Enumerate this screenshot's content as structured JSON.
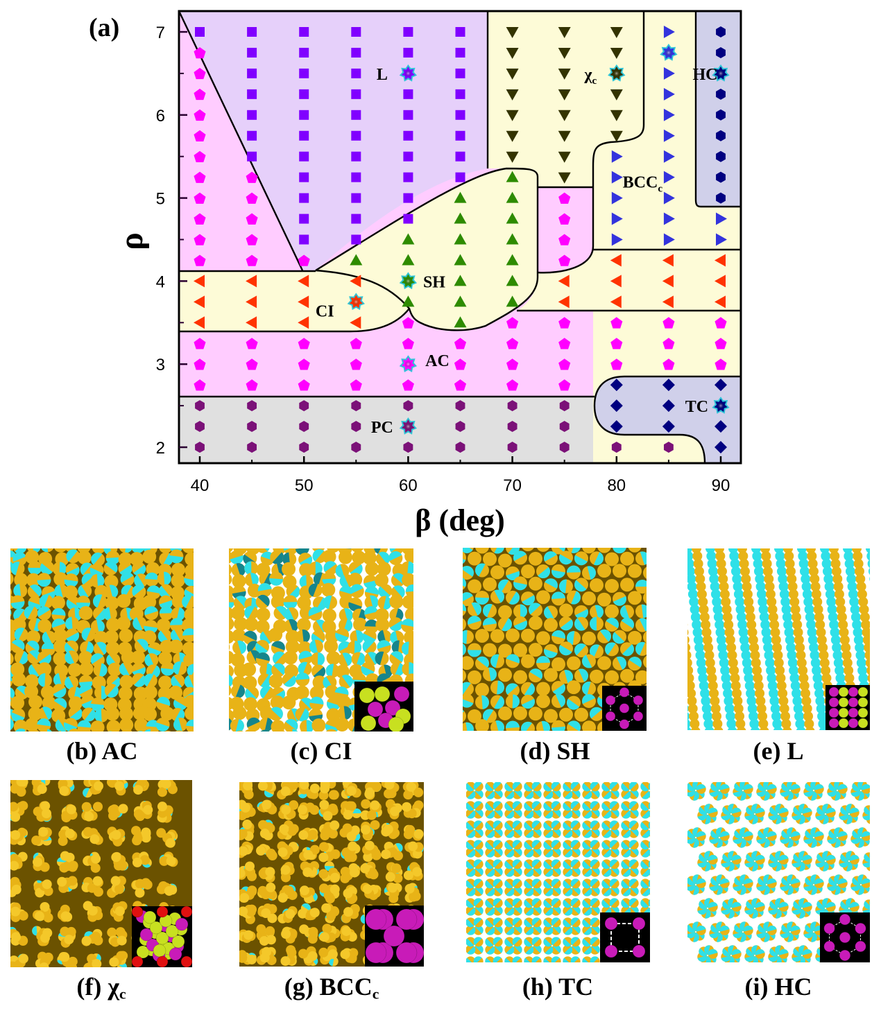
{
  "figure": {
    "panel_a_label": "(a)",
    "panels": [
      {
        "id": "b",
        "label": "(b) AC",
        "phase": "AC",
        "inset": "none"
      },
      {
        "id": "c",
        "label": "(c) CI",
        "phase": "CI",
        "inset": "CI unit cell (magenta and yellow-green spheres)"
      },
      {
        "id": "d",
        "label": "(d) SH",
        "phase": "SH",
        "inset": "hexagon with center sphere"
      },
      {
        "id": "e",
        "label": "(e) L",
        "phase": "L",
        "inset": "lamellar bicolor spheres"
      },
      {
        "id": "f",
        "label": "(f) χ",
        "sub": "c",
        "phase": "χc",
        "inset": "chi-phase unit cell"
      },
      {
        "id": "g",
        "label": "(g) BCC",
        "sub": "c",
        "phase": "BCCc",
        "inset": "BCC unit cell"
      },
      {
        "id": "h",
        "label": "(h) TC",
        "phase": "TC",
        "inset": "square of four spheres"
      },
      {
        "id": "i",
        "label": "(i) HC",
        "phase": "HC",
        "inset": "hexagon with center sphere"
      }
    ]
  },
  "chart_data": {
    "type": "scatter",
    "title": "",
    "xlabel": "β (deg)",
    "ylabel": "ρ",
    "xlim": [
      38,
      92
    ],
    "ylim": [
      1.8,
      7.25
    ],
    "xticks": [
      40,
      50,
      60,
      70,
      80,
      90
    ],
    "yticks": [
      2,
      3,
      4,
      5,
      6,
      7
    ],
    "x_minor_ticks": [
      45,
      55,
      65,
      75,
      85
    ],
    "y_minor_ticks": [
      2.5,
      3.5,
      4.5,
      5.5,
      6.5
    ],
    "grid": false,
    "legend": "none (phase labels annotated in-plot)",
    "x_values": [
      40,
      45,
      50,
      55,
      60,
      65,
      70,
      75,
      80,
      85,
      90
    ],
    "y_values": [
      2.0,
      2.25,
      2.5,
      2.75,
      3.0,
      3.25,
      3.5,
      3.75,
      4.0,
      4.25,
      4.5,
      4.75,
      5.0,
      5.25,
      5.5,
      5.75,
      6.0,
      6.25,
      6.5,
      6.75,
      7.0
    ],
    "phases": [
      {
        "name": "PC",
        "marker": "hexagon",
        "color": "#7b1178",
        "region_color": "#e0e0e0"
      },
      {
        "name": "AC",
        "marker": "pentagon",
        "color": "#ff00ff",
        "region_color": "#ffccff"
      },
      {
        "name": "CI",
        "marker": "triangle-left",
        "color": "#ff3300",
        "region_color": "#fdfbd7"
      },
      {
        "name": "SH",
        "marker": "triangle-up",
        "color": "#2e8b00",
        "region_color": "#fdfbd7"
      },
      {
        "name": "L",
        "marker": "square",
        "color": "#8000ff",
        "region_color": "#e6d0fa"
      },
      {
        "name": "χc",
        "marker": "triangle-down",
        "color": "#333300",
        "region_color": "#fdfbd7"
      },
      {
        "name": "BCCc",
        "marker": "triangle-right",
        "color": "#3333dd",
        "region_color": "#fdfbd7"
      },
      {
        "name": "HC",
        "marker": "hexagon",
        "color": "#000080",
        "region_color": "#d0d0ea"
      },
      {
        "name": "TC",
        "marker": "diamond",
        "color": "#000080",
        "region_color": "#d0d0ea"
      }
    ],
    "columns": [
      {
        "beta": 40,
        "points": [
          [
            "PC",
            2.0
          ],
          [
            "PC",
            2.25
          ],
          [
            "PC",
            2.5
          ],
          [
            "AC",
            2.75
          ],
          [
            "AC",
            3.0
          ],
          [
            "AC",
            3.25
          ],
          [
            "CI",
            3.5
          ],
          [
            "CI",
            3.75
          ],
          [
            "CI",
            4.0
          ],
          [
            "AC",
            4.25
          ],
          [
            "AC",
            4.5
          ],
          [
            "AC",
            4.75
          ],
          [
            "AC",
            5.0
          ],
          [
            "AC",
            5.25
          ],
          [
            "AC",
            5.5
          ],
          [
            "AC",
            5.75
          ],
          [
            "AC",
            6.0
          ],
          [
            "AC",
            6.25
          ],
          [
            "AC",
            6.5
          ],
          [
            "AC",
            6.75
          ],
          [
            "L",
            7.0
          ]
        ]
      },
      {
        "beta": 45,
        "points": [
          [
            "PC",
            2.0
          ],
          [
            "PC",
            2.25
          ],
          [
            "PC",
            2.5
          ],
          [
            "AC",
            2.75
          ],
          [
            "AC",
            3.0
          ],
          [
            "AC",
            3.25
          ],
          [
            "CI",
            3.5
          ],
          [
            "CI",
            3.75
          ],
          [
            "CI",
            4.0
          ],
          [
            "AC",
            4.25
          ],
          [
            "AC",
            4.5
          ],
          [
            "AC",
            4.75
          ],
          [
            "AC",
            5.0
          ],
          [
            "AC",
            5.25
          ],
          [
            "L",
            5.5
          ],
          [
            "L",
            5.75
          ],
          [
            "L",
            6.0
          ],
          [
            "L",
            6.25
          ],
          [
            "L",
            6.5
          ],
          [
            "L",
            6.75
          ],
          [
            "L",
            7.0
          ]
        ]
      },
      {
        "beta": 50,
        "points": [
          [
            "PC",
            2.0
          ],
          [
            "PC",
            2.25
          ],
          [
            "PC",
            2.5
          ],
          [
            "AC",
            2.75
          ],
          [
            "AC",
            3.0
          ],
          [
            "AC",
            3.25
          ],
          [
            "CI",
            3.5
          ],
          [
            "CI",
            3.75
          ],
          [
            "CI",
            4.0
          ],
          [
            "AC",
            4.25
          ],
          [
            "L",
            4.5
          ],
          [
            "L",
            4.75
          ],
          [
            "L",
            5.0
          ],
          [
            "L",
            5.25
          ],
          [
            "L",
            5.5
          ],
          [
            "L",
            5.75
          ],
          [
            "L",
            6.0
          ],
          [
            "L",
            6.25
          ],
          [
            "L",
            6.5
          ],
          [
            "L",
            6.75
          ],
          [
            "L",
            7.0
          ]
        ]
      },
      {
        "beta": 55,
        "points": [
          [
            "PC",
            2.0
          ],
          [
            "PC",
            2.25
          ],
          [
            "PC",
            2.5
          ],
          [
            "AC",
            2.75
          ],
          [
            "AC",
            3.0
          ],
          [
            "AC",
            3.25
          ],
          [
            "CI",
            3.5
          ],
          [
            "CI",
            3.75
          ],
          [
            "CI",
            4.0
          ],
          [
            "SH",
            4.25
          ],
          [
            "L",
            4.5
          ],
          [
            "L",
            4.75
          ],
          [
            "L",
            5.0
          ],
          [
            "L",
            5.25
          ],
          [
            "L",
            5.5
          ],
          [
            "L",
            5.75
          ],
          [
            "L",
            6.0
          ],
          [
            "L",
            6.25
          ],
          [
            "L",
            6.5
          ],
          [
            "L",
            6.75
          ],
          [
            "L",
            7.0
          ]
        ]
      },
      {
        "beta": 60,
        "points": [
          [
            "PC",
            2.0
          ],
          [
            "PC",
            2.25
          ],
          [
            "PC",
            2.5
          ],
          [
            "AC",
            2.75
          ],
          [
            "AC",
            3.0
          ],
          [
            "AC",
            3.25
          ],
          [
            "AC",
            3.5
          ],
          [
            "SH",
            3.75
          ],
          [
            "SH",
            4.0
          ],
          [
            "SH",
            4.25
          ],
          [
            "SH",
            4.5
          ],
          [
            "L",
            4.75
          ],
          [
            "L",
            5.0
          ],
          [
            "L",
            5.25
          ],
          [
            "L",
            5.5
          ],
          [
            "L",
            5.75
          ],
          [
            "L",
            6.0
          ],
          [
            "L",
            6.25
          ],
          [
            "L",
            6.5
          ],
          [
            "L",
            6.75
          ],
          [
            "L",
            7.0
          ]
        ]
      },
      {
        "beta": 65,
        "points": [
          [
            "PC",
            2.0
          ],
          [
            "PC",
            2.25
          ],
          [
            "PC",
            2.5
          ],
          [
            "AC",
            2.75
          ],
          [
            "AC",
            3.0
          ],
          [
            "AC",
            3.25
          ],
          [
            "SH",
            3.5
          ],
          [
            "SH",
            3.75
          ],
          [
            "SH",
            4.0
          ],
          [
            "SH",
            4.25
          ],
          [
            "SH",
            4.5
          ],
          [
            "SH",
            4.75
          ],
          [
            "SH",
            5.0
          ],
          [
            "L",
            5.25
          ],
          [
            "L",
            5.5
          ],
          [
            "L",
            5.75
          ],
          [
            "L",
            6.0
          ],
          [
            "L",
            6.25
          ],
          [
            "L",
            6.5
          ],
          [
            "L",
            6.75
          ],
          [
            "L",
            7.0
          ]
        ]
      },
      {
        "beta": 70,
        "points": [
          [
            "PC",
            2.0
          ],
          [
            "PC",
            2.25
          ],
          [
            "PC",
            2.5
          ],
          [
            "AC",
            2.75
          ],
          [
            "AC",
            3.0
          ],
          [
            "AC",
            3.25
          ],
          [
            "AC",
            3.5
          ],
          [
            "SH",
            3.75
          ],
          [
            "SH",
            4.0
          ],
          [
            "SH",
            4.25
          ],
          [
            "SH",
            4.5
          ],
          [
            "SH",
            4.75
          ],
          [
            "SH",
            5.0
          ],
          [
            "SH",
            5.25
          ],
          [
            "χc",
            5.5
          ],
          [
            "χc",
            5.75
          ],
          [
            "χc",
            6.0
          ],
          [
            "χc",
            6.25
          ],
          [
            "χc",
            6.5
          ],
          [
            "χc",
            6.75
          ],
          [
            "χc",
            7.0
          ]
        ]
      },
      {
        "beta": 75,
        "points": [
          [
            "PC",
            2.0
          ],
          [
            "PC",
            2.25
          ],
          [
            "PC",
            2.5
          ],
          [
            "AC",
            2.75
          ],
          [
            "AC",
            3.0
          ],
          [
            "AC",
            3.25
          ],
          [
            "AC",
            3.5
          ],
          [
            "CI",
            3.75
          ],
          [
            "CI",
            4.0
          ],
          [
            "AC",
            4.25
          ],
          [
            "AC",
            4.5
          ],
          [
            "AC",
            4.75
          ],
          [
            "AC",
            5.0
          ],
          [
            "χc",
            5.25
          ],
          [
            "χc",
            5.5
          ],
          [
            "χc",
            5.75
          ],
          [
            "χc",
            6.0
          ],
          [
            "χc",
            6.25
          ],
          [
            "χc",
            6.5
          ],
          [
            "χc",
            6.75
          ],
          [
            "χc",
            7.0
          ]
        ]
      },
      {
        "beta": 80,
        "points": [
          [
            "PC",
            2.0
          ],
          [
            "TC",
            2.25
          ],
          [
            "TC",
            2.5
          ],
          [
            "TC",
            2.75
          ],
          [
            "AC",
            3.0
          ],
          [
            "AC",
            3.25
          ],
          [
            "AC",
            3.5
          ],
          [
            "CI",
            3.75
          ],
          [
            "CI",
            4.0
          ],
          [
            "CI",
            4.25
          ],
          [
            "BCCc",
            4.5
          ],
          [
            "BCCc",
            4.75
          ],
          [
            "BCCc",
            5.0
          ],
          [
            "BCCc",
            5.25
          ],
          [
            "BCCc",
            5.5
          ],
          [
            "χc",
            5.75
          ],
          [
            "χc",
            6.0
          ],
          [
            "χc",
            6.25
          ],
          [
            "χc",
            6.5
          ],
          [
            "χc",
            6.75
          ],
          [
            "χc",
            7.0
          ]
        ]
      },
      {
        "beta": 85,
        "points": [
          [
            "PC",
            2.0
          ],
          [
            "TC",
            2.25
          ],
          [
            "TC",
            2.5
          ],
          [
            "TC",
            2.75
          ],
          [
            "AC",
            3.0
          ],
          [
            "AC",
            3.25
          ],
          [
            "AC",
            3.5
          ],
          [
            "CI",
            3.75
          ],
          [
            "CI",
            4.0
          ],
          [
            "CI",
            4.25
          ],
          [
            "BCCc",
            4.5
          ],
          [
            "BCCc",
            4.75
          ],
          [
            "BCCc",
            5.0
          ],
          [
            "BCCc",
            5.25
          ],
          [
            "BCCc",
            5.5
          ],
          [
            "BCCc",
            5.75
          ],
          [
            "BCCc",
            6.0
          ],
          [
            "BCCc",
            6.25
          ],
          [
            "BCCc",
            6.5
          ],
          [
            "BCCc",
            6.75
          ],
          [
            "BCCc",
            7.0
          ]
        ]
      },
      {
        "beta": 90,
        "points": [
          [
            "TC",
            2.0
          ],
          [
            "TC",
            2.25
          ],
          [
            "TC",
            2.5
          ],
          [
            "TC",
            2.75
          ],
          [
            "AC",
            3.0
          ],
          [
            "AC",
            3.25
          ],
          [
            "AC",
            3.5
          ],
          [
            "CI",
            3.75
          ],
          [
            "CI",
            4.0
          ],
          [
            "CI",
            4.25
          ],
          [
            "BCCc",
            4.5
          ],
          [
            "BCCc",
            4.75
          ],
          [
            "HC",
            5.0
          ],
          [
            "HC",
            5.25
          ],
          [
            "HC",
            5.5
          ],
          [
            "HC",
            5.75
          ],
          [
            "HC",
            6.0
          ],
          [
            "HC",
            6.25
          ],
          [
            "HC",
            6.5
          ],
          [
            "HC",
            6.75
          ],
          [
            "HC",
            7.0
          ]
        ]
      }
    ],
    "representative_states": [
      {
        "phase": "L",
        "beta": 60,
        "rho": 6.5
      },
      {
        "phase": "χc",
        "beta": 80,
        "rho": 6.5
      },
      {
        "phase": "BCCc",
        "beta": 85,
        "rho": 6.75
      },
      {
        "phase": "HC",
        "beta": 90,
        "rho": 6.5
      },
      {
        "phase": "SH",
        "beta": 60,
        "rho": 4.0
      },
      {
        "phase": "CI",
        "beta": 55,
        "rho": 3.75
      },
      {
        "phase": "AC",
        "beta": 60,
        "rho": 3.0
      },
      {
        "phase": "PC",
        "beta": 60,
        "rho": 2.25
      },
      {
        "phase": "TC",
        "beta": 90,
        "rho": 2.5
      }
    ],
    "annotations": [
      {
        "text": "L",
        "beta": 57.5,
        "rho": 6.5
      },
      {
        "text": "χ",
        "sub": "c",
        "beta": 77.5,
        "rho": 6.5
      },
      {
        "text": "HC",
        "beta": 88.5,
        "rho": 6.5
      },
      {
        "text": "BCC",
        "sub": "c",
        "beta": 82.5,
        "rho": 5.2
      },
      {
        "text": "SH",
        "beta": 62.5,
        "rho": 4.0
      },
      {
        "text": "CI",
        "beta": 52,
        "rho": 3.65
      },
      {
        "text": "AC",
        "beta": 62.8,
        "rho": 3.05
      },
      {
        "text": "PC",
        "beta": 57.5,
        "rho": 2.25
      },
      {
        "text": "TC",
        "beta": 87.7,
        "rho": 2.5
      }
    ]
  }
}
